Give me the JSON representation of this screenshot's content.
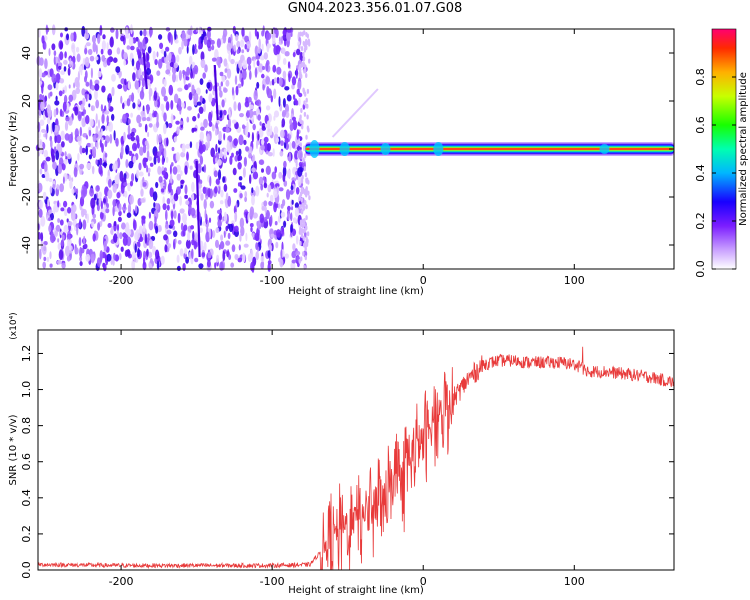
{
  "figure": {
    "title": "GN04.2023.356.01.07.G08"
  },
  "chart_data": [
    {
      "type": "heatmap",
      "xlabel": "Height of straight line (km)",
      "ylabel": "Frequency (Hz)",
      "xlim": [
        -255,
        166
      ],
      "ylim": [
        -50,
        50
      ],
      "xticks": [
        -200,
        -100,
        0,
        100
      ],
      "yticks": [
        -40,
        -20,
        0,
        20,
        40
      ],
      "colorbar": {
        "label": "Normalized spectral amplitude",
        "ticks": [
          "0.0",
          "0.2",
          "0.4",
          "0.6",
          "0.8"
        ],
        "range": [
          0,
          1
        ]
      },
      "regions": [
        {
          "kind": "broadband noise",
          "x_range": [
            -255,
            -78
          ],
          "y_range": [
            -50,
            50
          ],
          "amplitude": "low (0.1-0.3)"
        },
        {
          "kind": "carrier line",
          "x_range": [
            -78,
            166
          ],
          "frequency_hz": 0,
          "amplitude": "high (~0.9-1.0)"
        }
      ],
      "grid": false
    },
    {
      "type": "line",
      "xlabel": "Height of straight line (km)",
      "ylabel": "SNR (10 * v/v)",
      "yscale_note": "(x10⁴)",
      "xlim": [
        -255,
        166
      ],
      "ylim": [
        0,
        1.33
      ],
      "xticks": [
        -200,
        -100,
        0,
        100
      ],
      "yticks": [
        "0.0",
        "0.2",
        "0.4",
        "0.6",
        "0.8",
        "1.0",
        "1.2"
      ],
      "line_color": "#e83a3a",
      "series": [
        {
          "x": [
            -255,
            -200,
            -150,
            -100,
            -75,
            -68,
            -60,
            -50,
            -40,
            -30,
            -20,
            -10,
            0,
            10,
            20,
            30,
            40,
            50,
            60,
            70,
            80,
            90,
            100,
            105,
            110,
            120,
            130,
            140,
            150,
            160,
            166
          ],
          "values": [
            0.03,
            0.025,
            0.025,
            0.025,
            0.03,
            0.1,
            0.2,
            0.25,
            0.32,
            0.4,
            0.5,
            0.62,
            0.72,
            0.85,
            0.95,
            1.06,
            1.14,
            1.16,
            1.16,
            1.15,
            1.15,
            1.15,
            1.14,
            1.12,
            1.1,
            1.1,
            1.09,
            1.08,
            1.07,
            1.05,
            1.04
          ]
        }
      ],
      "grid": false
    }
  ]
}
